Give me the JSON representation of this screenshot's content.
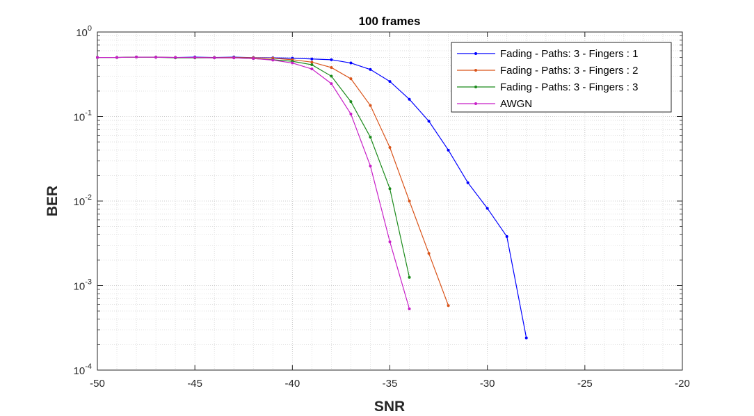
{
  "chart_data": {
    "type": "line",
    "title": "100 frames",
    "xlabel": "SNR",
    "ylabel": "BER",
    "xlim": [
      -50,
      -20
    ],
    "ylim": [
      0.0001,
      1
    ],
    "yscale": "log",
    "grid": true,
    "minor_grid": true,
    "legend_position": "top-right",
    "x_ticks": [
      -50,
      -45,
      -40,
      -35,
      -30,
      -25,
      -20
    ],
    "x_tick_labels": [
      "-50",
      "-45",
      "-40",
      "-35",
      "-30",
      "-25",
      "-20"
    ],
    "y_ticks": [
      {
        "value": 1,
        "base": "10",
        "exp": "0"
      },
      {
        "value": 0.1,
        "base": "10",
        "exp": "-1"
      },
      {
        "value": 0.01,
        "base": "10",
        "exp": "-2"
      },
      {
        "value": 0.001,
        "base": "10",
        "exp": "-3"
      },
      {
        "value": 0.0001,
        "base": "10",
        "exp": "-4"
      }
    ],
    "series": [
      {
        "name": "Fading - Paths: 3 - Fingers : 1",
        "color": "#0000ff",
        "x": [
          -50,
          -49,
          -48,
          -47,
          -46,
          -45,
          -44,
          -43,
          -42,
          -41,
          -40,
          -39,
          -38,
          -37,
          -36,
          -35,
          -34,
          -33,
          -32,
          -31,
          -30,
          -29,
          -28
        ],
        "y": [
          0.5,
          0.5,
          0.505,
          0.503,
          0.5,
          0.505,
          0.5,
          0.505,
          0.498,
          0.495,
          0.49,
          0.48,
          0.47,
          0.43,
          0.36,
          0.26,
          0.16,
          0.088,
          0.04,
          0.0165,
          0.0082,
          0.0038,
          0.00024
        ]
      },
      {
        "name": "Fading - Paths: 3 - Fingers : 2",
        "color": "#d95319",
        "x": [
          -50,
          -49,
          -48,
          -47,
          -46,
          -45,
          -44,
          -43,
          -42,
          -41,
          -40,
          -39,
          -38,
          -37,
          -36,
          -35,
          -34,
          -33,
          -32
        ],
        "y": [
          0.5,
          0.5,
          0.505,
          0.503,
          0.5,
          0.5,
          0.498,
          0.5,
          0.495,
          0.49,
          0.47,
          0.44,
          0.38,
          0.28,
          0.135,
          0.043,
          0.01,
          0.0024,
          0.00058
        ]
      },
      {
        "name": "Fading - Paths: 3 - Fingers : 3",
        "color": "#1b8a1b",
        "x": [
          -50,
          -49,
          -48,
          -47,
          -46,
          -45,
          -44,
          -43,
          -42,
          -41,
          -40,
          -39,
          -38,
          -37,
          -36,
          -35,
          -34
        ],
        "y": [
          0.5,
          0.5,
          0.505,
          0.503,
          0.495,
          0.495,
          0.495,
          0.495,
          0.485,
          0.47,
          0.45,
          0.41,
          0.3,
          0.15,
          0.057,
          0.014,
          0.00125
        ]
      },
      {
        "name": "AWGN",
        "color": "#c71ec7",
        "x": [
          -50,
          -49,
          -48,
          -47,
          -46,
          -45,
          -44,
          -43,
          -42,
          -41,
          -40,
          -39,
          -38,
          -37,
          -36,
          -35,
          -34
        ],
        "y": [
          0.5,
          0.5,
          0.505,
          0.503,
          0.5,
          0.5,
          0.495,
          0.495,
          0.485,
          0.465,
          0.43,
          0.365,
          0.245,
          0.107,
          0.026,
          0.0033,
          0.00053
        ]
      }
    ]
  }
}
